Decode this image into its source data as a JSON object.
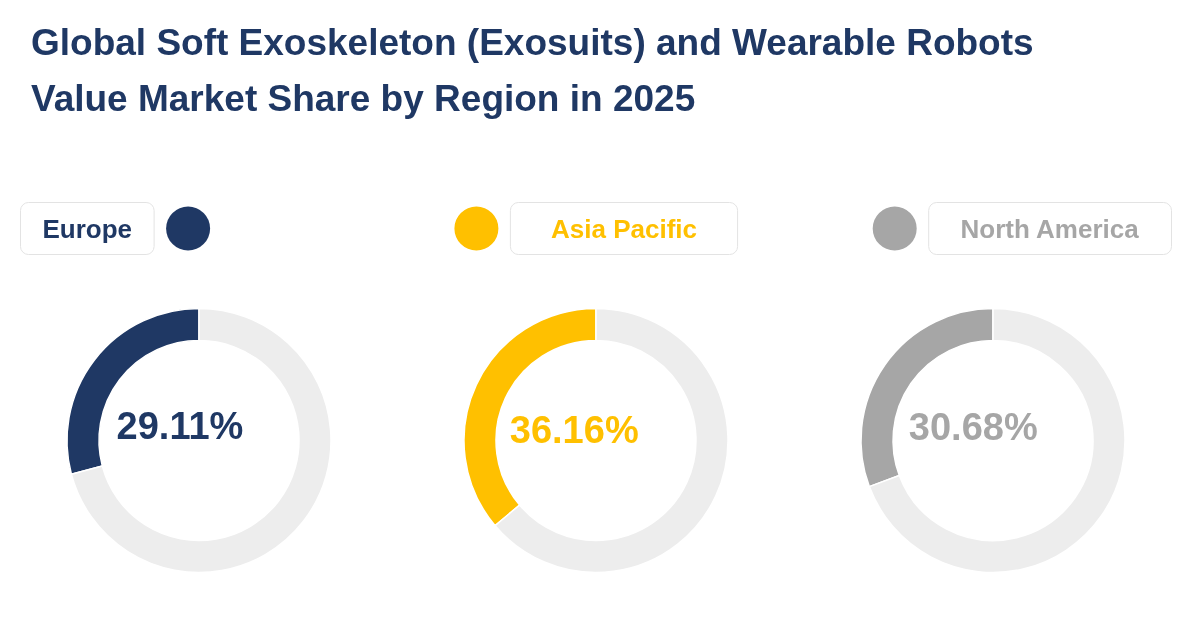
{
  "chart_data": [
    {
      "type": "donut",
      "title": "Global Soft Exoskeleton (Exosuits) and Wearable Robots Value Market Share by Region in 2025",
      "categories": [
        "Europe",
        null
      ],
      "values": [
        29.11,
        70.89
      ],
      "colors": [
        "#1f3864",
        "#ededed"
      ],
      "value_labels": [
        "29.11%",
        null
      ],
      "legend": "top left"
    },
    {
      "type": "donut",
      "categories": [
        "Asia Pacific",
        null
      ],
      "values": [
        36.16,
        63.84
      ],
      "colors": [
        "#ffc000",
        "#ededed"
      ],
      "value_labels": [
        "36.16%",
        null
      ],
      "legend": "top"
    },
    {
      "type": "donut",
      "categories": [
        "North America",
        null
      ],
      "values": [
        30.68,
        69.32
      ],
      "colors": [
        "#a6a6a6",
        "#ededed"
      ],
      "value_labels": [
        "30.68%",
        null
      ],
      "legend": "top right"
    }
  ]
}
